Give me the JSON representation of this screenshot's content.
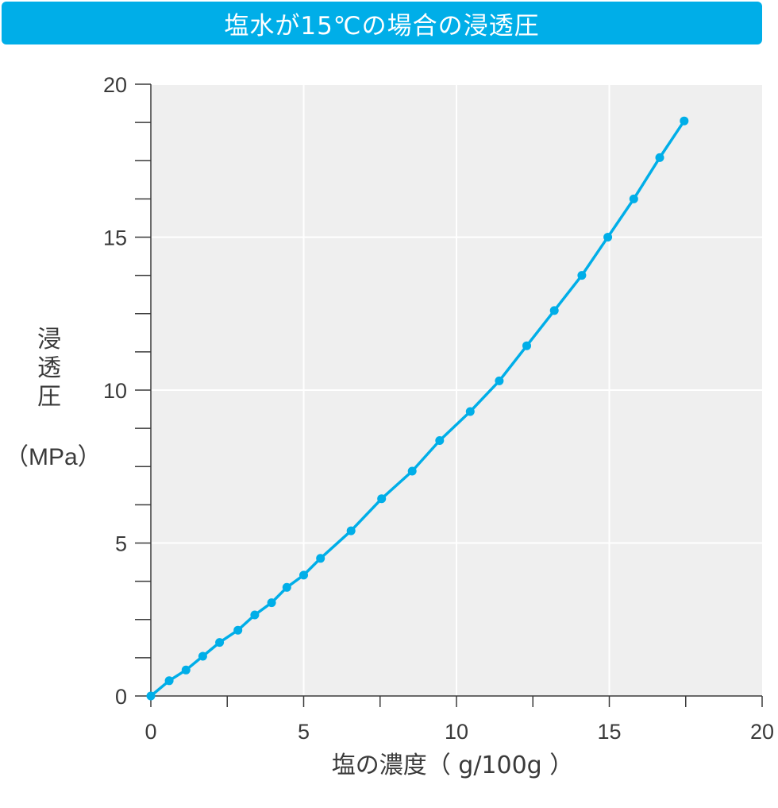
{
  "header": {
    "title": "塩水が15℃の場合の浸透圧"
  },
  "colors": {
    "accent": "#00aee8",
    "plot_background": "#efefef",
    "gridline": "#ffffff",
    "axis": "#3a3a3a",
    "text": "#3a3a3a"
  },
  "chart_data": {
    "type": "line",
    "title": "塩水が15℃の場合の浸透圧",
    "xlabel": "塩の濃度（ g/100g ）",
    "ylabel": "浸透圧",
    "ylabel_unit": "（MPa）",
    "xlim": [
      0,
      20
    ],
    "ylim": [
      0,
      20
    ],
    "x_ticks": [
      0,
      5,
      10,
      15,
      20
    ],
    "y_ticks": [
      0,
      5,
      10,
      15,
      20
    ],
    "x_tick_labels": [
      "0",
      "5",
      "10",
      "15",
      "20"
    ],
    "y_tick_labels": [
      "0",
      "5",
      "10",
      "15",
      "20"
    ],
    "grid": true,
    "legend": "none",
    "series": [
      {
        "color": "#00aee8",
        "marker": "circle",
        "x": [
          0,
          0.6,
          1.15,
          1.7,
          2.25,
          2.85,
          3.4,
          3.95,
          4.45,
          5.0,
          5.55,
          6.55,
          7.55,
          8.55,
          9.45,
          10.45,
          11.4,
          12.3,
          13.2,
          14.1,
          14.95,
          15.8,
          16.65,
          17.45
        ],
        "y": [
          0,
          0.5,
          0.85,
          1.3,
          1.75,
          2.15,
          2.65,
          3.05,
          3.55,
          3.95,
          4.5,
          5.4,
          6.45,
          7.35,
          8.35,
          9.3,
          10.3,
          11.45,
          12.6,
          13.75,
          15.0,
          16.25,
          17.6,
          18.8
        ]
      }
    ]
  }
}
